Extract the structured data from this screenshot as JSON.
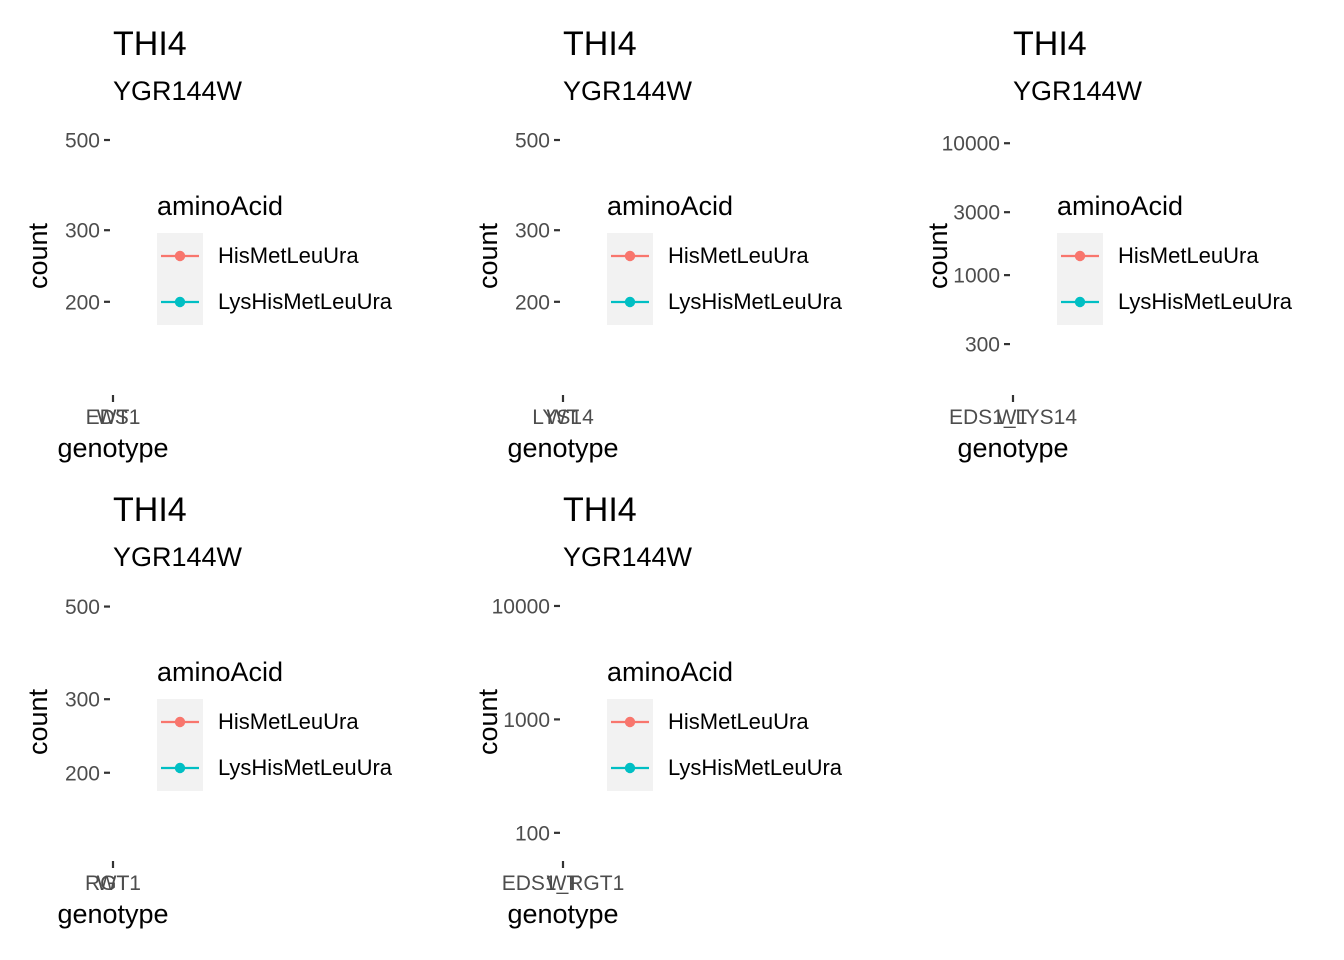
{
  "chart_data": [
    {
      "type": "line",
      "title": "THI4",
      "subtitle": "YGR144W",
      "xlabel": "genotype",
      "ylabel": "count",
      "x_ticks": [
        "EDS1",
        "WT"
      ],
      "y_scale": "log",
      "y_ticks": [
        200,
        300,
        500
      ],
      "ylim": [
        120,
        560
      ],
      "legend": {
        "title": "aminoAcid",
        "position": "right",
        "entries": [
          {
            "name": "HisMetLeuUra",
            "color": "#F8766D"
          },
          {
            "name": "LysHisMetLeuUra",
            "color": "#00BFC4"
          }
        ]
      },
      "series": [
        {
          "name": "HisMetLeuUra",
          "values": []
        },
        {
          "name": "LysHisMetLeuUra",
          "values": []
        }
      ]
    },
    {
      "type": "line",
      "title": "THI4",
      "subtitle": "YGR144W",
      "xlabel": "genotype",
      "ylabel": "count",
      "x_ticks": [
        "LYS14",
        "WT"
      ],
      "y_scale": "log",
      "y_ticks": [
        200,
        300,
        500
      ],
      "ylim": [
        120,
        560
      ],
      "legend": {
        "title": "aminoAcid",
        "position": "right",
        "entries": [
          {
            "name": "HisMetLeuUra",
            "color": "#F8766D"
          },
          {
            "name": "LysHisMetLeuUra",
            "color": "#00BFC4"
          }
        ]
      },
      "series": [
        {
          "name": "HisMetLeuUra",
          "values": []
        },
        {
          "name": "LysHisMetLeuUra",
          "values": []
        }
      ]
    },
    {
      "type": "line",
      "title": "THI4",
      "subtitle": "YGR144W",
      "xlabel": "genotype",
      "ylabel": "count",
      "x_ticks": [
        "EDS1_LYS14",
        "WT"
      ],
      "y_scale": "log",
      "y_ticks": [
        300,
        1000,
        3000,
        10000
      ],
      "ylim": [
        130,
        15000
      ],
      "legend": {
        "title": "aminoAcid",
        "position": "right",
        "entries": [
          {
            "name": "HisMetLeuUra",
            "color": "#F8766D"
          },
          {
            "name": "LysHisMetLeuUra",
            "color": "#00BFC4"
          }
        ]
      },
      "series": [
        {
          "name": "HisMetLeuUra",
          "values": []
        },
        {
          "name": "LysHisMetLeuUra",
          "values": []
        }
      ]
    },
    {
      "type": "line",
      "title": "THI4",
      "subtitle": "YGR144W",
      "xlabel": "genotype",
      "ylabel": "count",
      "x_ticks": [
        "RGT1",
        "WT"
      ],
      "y_scale": "log",
      "y_ticks": [
        200,
        300,
        500
      ],
      "ylim": [
        125,
        560
      ],
      "legend": {
        "title": "aminoAcid",
        "position": "right",
        "entries": [
          {
            "name": "HisMetLeuUra",
            "color": "#F8766D"
          },
          {
            "name": "LysHisMetLeuUra",
            "color": "#00BFC4"
          }
        ]
      },
      "series": [
        {
          "name": "HisMetLeuUra",
          "values": []
        },
        {
          "name": "LysHisMetLeuUra",
          "values": []
        }
      ]
    },
    {
      "type": "line",
      "title": "THI4",
      "subtitle": "YGR144W",
      "xlabel": "genotype",
      "ylabel": "count",
      "x_ticks": [
        "EDS1_RGT1",
        "WT"
      ],
      "y_scale": "log",
      "y_ticks": [
        100,
        1000,
        10000
      ],
      "ylim": [
        60,
        15000
      ],
      "legend": {
        "title": "aminoAcid",
        "position": "right",
        "entries": [
          {
            "name": "HisMetLeuUra",
            "color": "#F8766D"
          },
          {
            "name": "LysHisMetLeuUra",
            "color": "#00BFC4"
          }
        ]
      },
      "series": [
        {
          "name": "HisMetLeuUra",
          "values": []
        },
        {
          "name": "LysHisMetLeuUra",
          "values": []
        }
      ]
    }
  ]
}
